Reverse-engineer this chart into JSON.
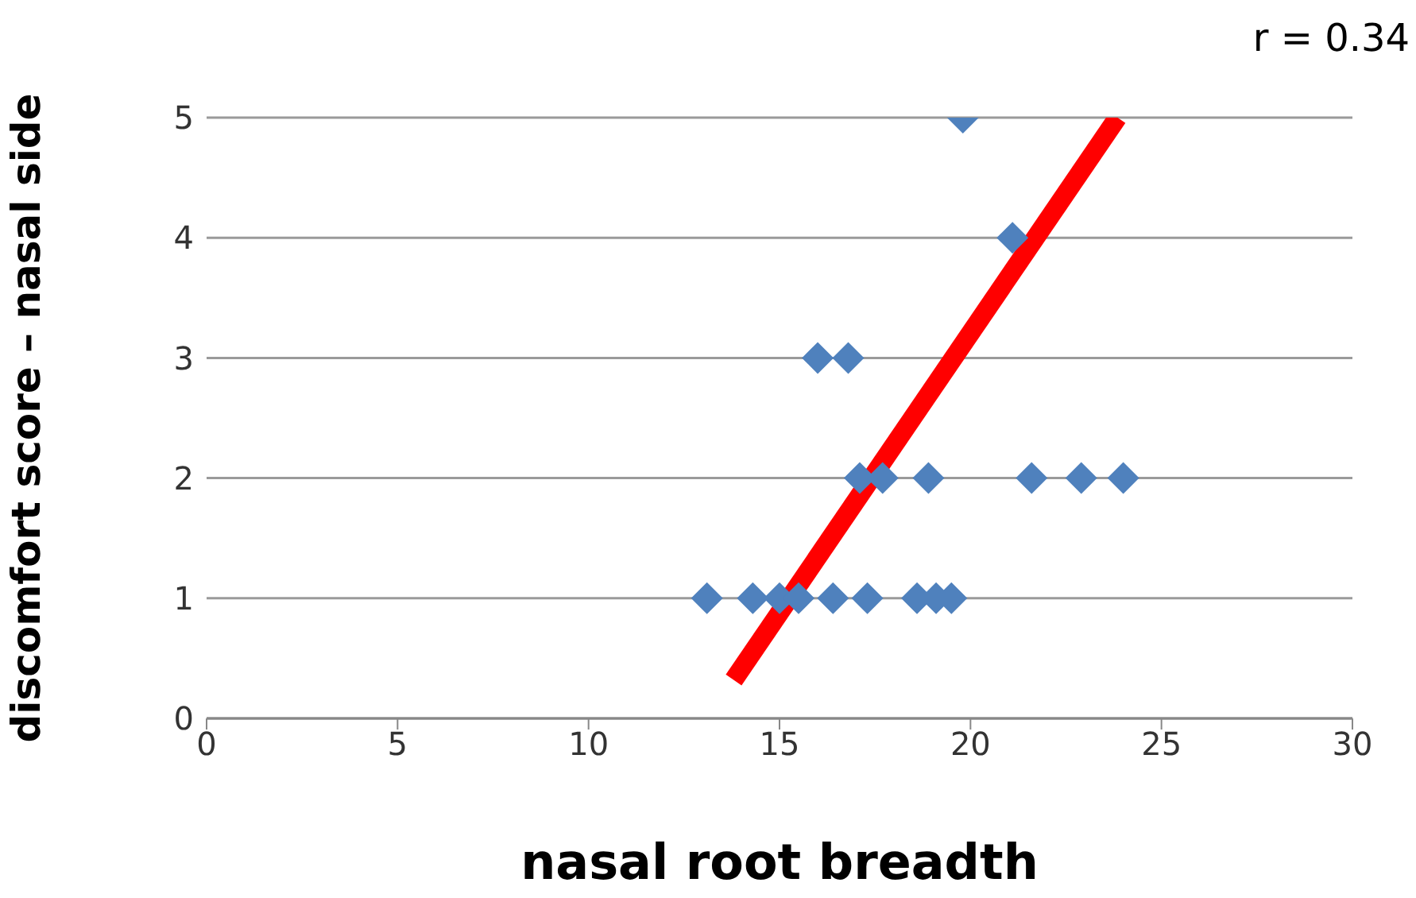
{
  "chart_data": {
    "type": "scatter",
    "xlabel": "nasal root breadth",
    "ylabel": "discomfort score – nasal side",
    "annotations": [
      "r = 0.34"
    ],
    "xlim": [
      0,
      30
    ],
    "xticks": [
      0,
      5,
      10,
      15,
      20,
      25,
      30
    ],
    "ylim": [
      0,
      5
    ],
    "yticks": [
      0,
      1,
      2,
      3,
      4,
      5
    ],
    "grid": "y",
    "marker": "diamond",
    "series": [
      {
        "color": "#4f81bd",
        "x": [
          13.1,
          14.3,
          15.0,
          15.5,
          16.4,
          17.3,
          18.6,
          19.1,
          19.5,
          17.1,
          17.7,
          18.9,
          21.6,
          22.9,
          24.0,
          16.0,
          16.8,
          21.1,
          19.8
        ],
        "values": [
          1,
          1,
          1,
          1,
          1,
          1,
          1,
          1,
          1,
          2,
          2,
          2,
          2,
          2,
          2,
          3,
          3,
          4,
          5
        ]
      },
      {
        "type": "line",
        "marker": "none",
        "color": "#ff0000",
        "x": [
          13.8,
          23.85
        ],
        "values": [
          0.32,
          5
        ]
      }
    ]
  }
}
